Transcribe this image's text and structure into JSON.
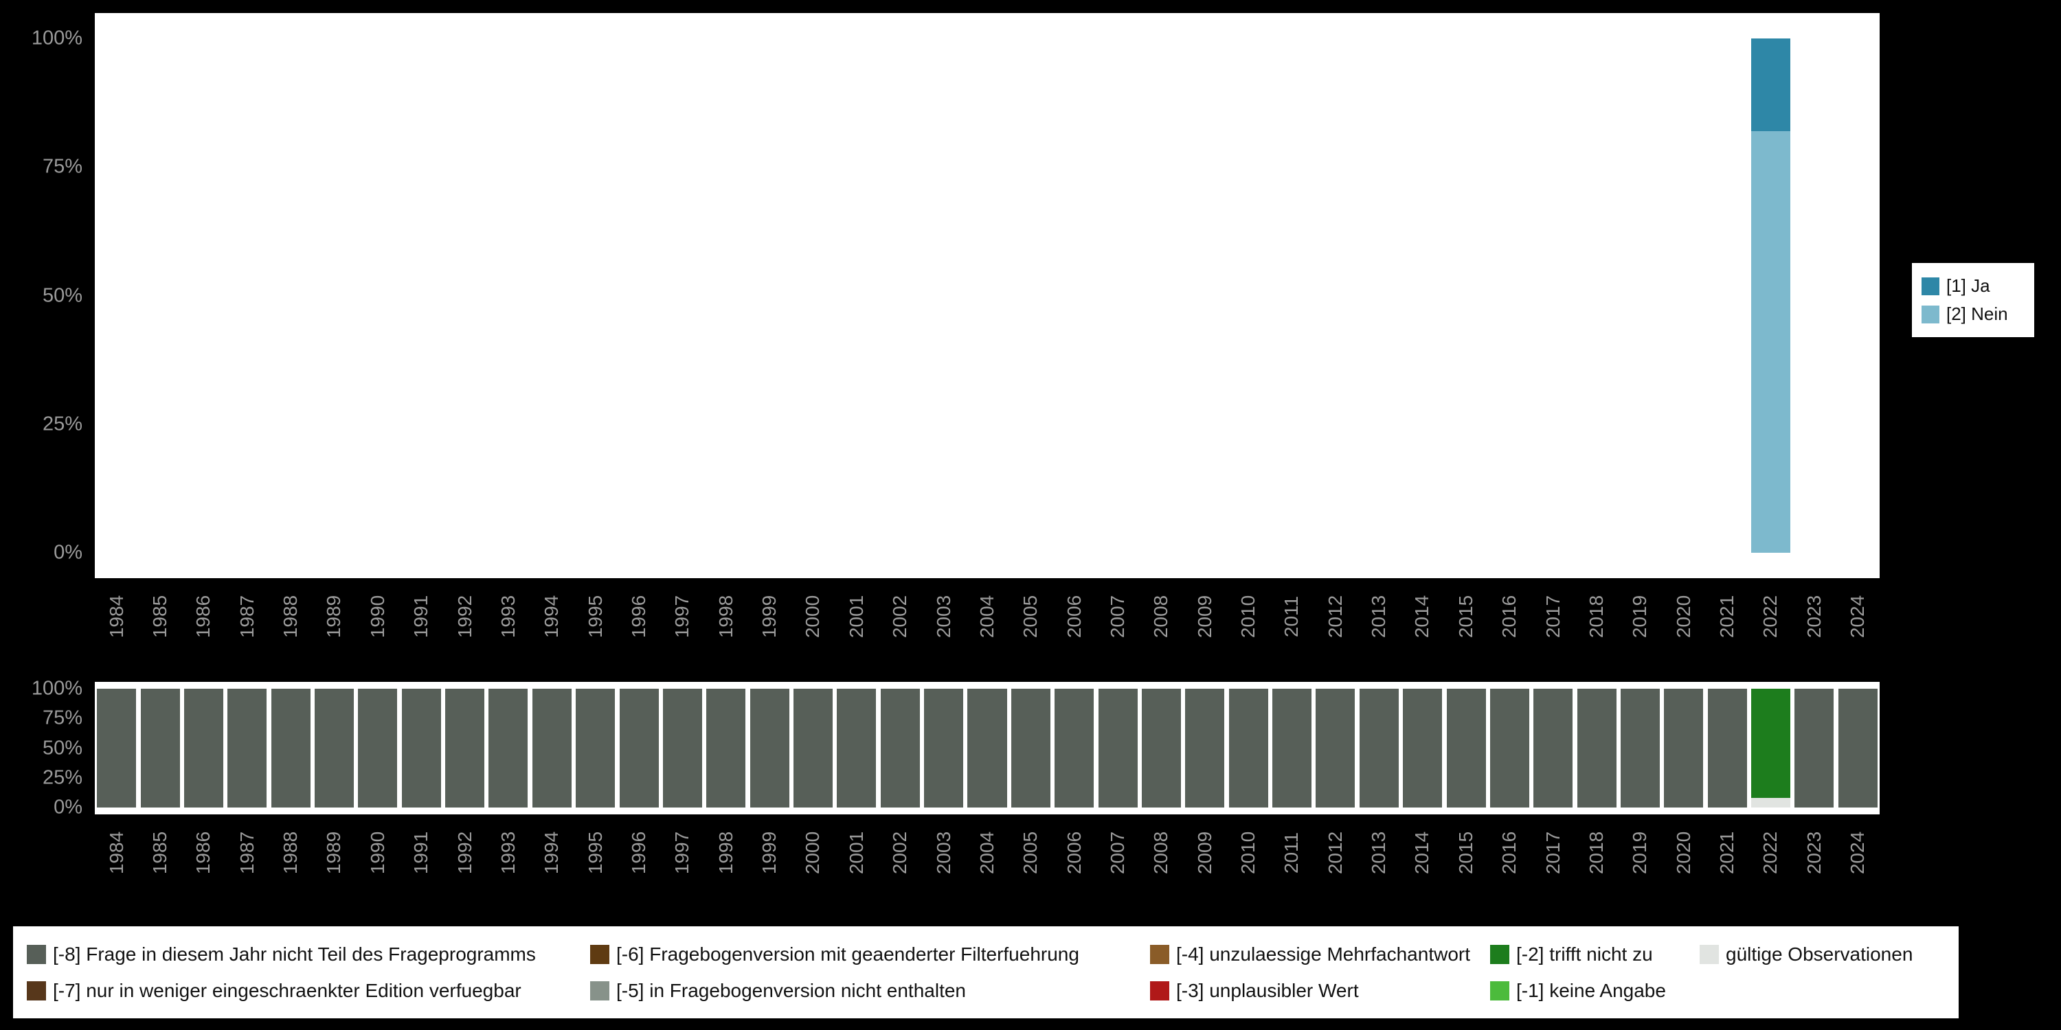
{
  "style": {
    "background": "#000000",
    "plot_background": "#ffffff",
    "axis_text_color": "#9b9b9b",
    "legend_background": "#ffffff",
    "legend_text_color": "#111111"
  },
  "chart_data": [
    {
      "type": "bar",
      "stacked": true,
      "title": "",
      "xlabel": "",
      "ylabel": "",
      "grid": false,
      "legend_position": "right",
      "x": [
        "1984",
        "1985",
        "1986",
        "1987",
        "1988",
        "1989",
        "1990",
        "1991",
        "1992",
        "1993",
        "1994",
        "1995",
        "1996",
        "1997",
        "1998",
        "1999",
        "2000",
        "2001",
        "2002",
        "2003",
        "2004",
        "2005",
        "2006",
        "2007",
        "2008",
        "2009",
        "2010",
        "2011",
        "2012",
        "2013",
        "2014",
        "2015",
        "2016",
        "2017",
        "2018",
        "2019",
        "2020",
        "2021",
        "2022",
        "2023",
        "2024"
      ],
      "ylim": [
        0,
        100
      ],
      "yticks": [
        {
          "label": "100%",
          "value": 100
        },
        {
          "label": "75%",
          "value": 75
        },
        {
          "label": "50%",
          "value": 50
        },
        {
          "label": "25%",
          "value": 25
        },
        {
          "label": "0%",
          "value": 0
        }
      ],
      "pad_top": 0.045,
      "pad_bottom": 0.045,
      "bar_width": 0.9,
      "series": [
        {
          "name": "[1] Ja",
          "color": "#2e87a7",
          "default": 0,
          "overrides": {
            "2022": 18
          }
        },
        {
          "name": "[2] Nein",
          "color": "#7db9cd",
          "default": 0,
          "overrides": {
            "2022": 82
          }
        }
      ]
    },
    {
      "type": "bar",
      "stacked": true,
      "title": "",
      "xlabel": "",
      "ylabel": "",
      "grid": false,
      "legend_position": "bottom",
      "x": [
        "1984",
        "1985",
        "1986",
        "1987",
        "1988",
        "1989",
        "1990",
        "1991",
        "1992",
        "1993",
        "1994",
        "1995",
        "1996",
        "1997",
        "1998",
        "1999",
        "2000",
        "2001",
        "2002",
        "2003",
        "2004",
        "2005",
        "2006",
        "2007",
        "2008",
        "2009",
        "2010",
        "2011",
        "2012",
        "2013",
        "2014",
        "2015",
        "2016",
        "2017",
        "2018",
        "2019",
        "2020",
        "2021",
        "2022",
        "2023",
        "2024"
      ],
      "ylim": [
        0,
        100
      ],
      "yticks": [
        {
          "label": "100%",
          "value": 100
        },
        {
          "label": "75%",
          "value": 75
        },
        {
          "label": "50%",
          "value": 50
        },
        {
          "label": "25%",
          "value": 25
        },
        {
          "label": "0%",
          "value": 0
        }
      ],
      "pad_top": 0.05,
      "pad_bottom": 0.05,
      "bar_width": 0.9,
      "series": [
        {
          "name": "[-8] Frage in diesem Jahr nicht Teil des Frageprogramms",
          "color": "#575f58",
          "default": 100,
          "overrides": {
            "2022": 0
          }
        },
        {
          "name": "[-7] nur in weniger eingeschraenkter Edition verfuegbar",
          "color": "#57371b",
          "default": 0
        },
        {
          "name": "[-6] Fragebogenversion mit geaenderter Filterfuehrung",
          "color": "#5f3b12",
          "default": 0
        },
        {
          "name": "[-5] in Fragebogenversion nicht enthalten",
          "color": "#87928a",
          "default": 0
        },
        {
          "name": "[-4] unzulaessige Mehrfachantwort",
          "color": "#8a5c28",
          "default": 0
        },
        {
          "name": "[-3] unplausibler Wert",
          "color": "#b01818",
          "default": 0
        },
        {
          "name": "[-2] trifft nicht zu",
          "color": "#1d7d1d",
          "default": 0,
          "overrides": {
            "2022": 92
          }
        },
        {
          "name": "[-1] keine Angabe",
          "color": "#4cbb3c",
          "default": 0
        },
        {
          "name": "gültige Observationen",
          "color": "#e1e4e1",
          "default": 0,
          "overrides": {
            "2022": 8
          }
        }
      ]
    }
  ]
}
